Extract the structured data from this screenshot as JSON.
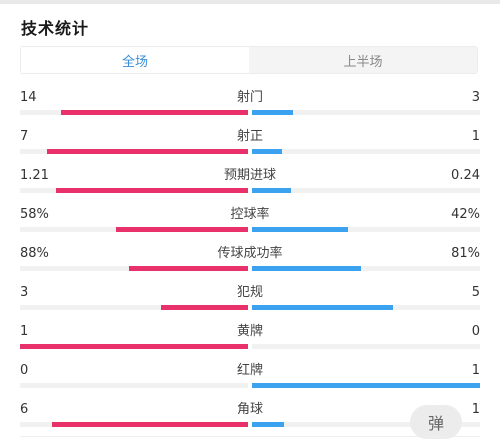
{
  "page": {
    "title": "技术统计"
  },
  "tabs": [
    {
      "label": "全场",
      "active": true
    },
    {
      "label": "上半场",
      "active": false
    }
  ],
  "colors": {
    "home": "#e8306b",
    "away": "#3ba2ef",
    "accent": "#3a8ed8"
  },
  "stats": [
    {
      "name": "射门",
      "home": "14",
      "away": "3",
      "home_fill": 0.82,
      "away_fill": 0.18
    },
    {
      "name": "射正",
      "home": "7",
      "away": "1",
      "home_fill": 0.88,
      "away_fill": 0.13
    },
    {
      "name": "预期进球",
      "home": "1.21",
      "away": "0.24",
      "home_fill": 0.84,
      "away_fill": 0.17
    },
    {
      "name": "控球率",
      "home": "58%",
      "away": "42%",
      "home_fill": 0.58,
      "away_fill": 0.42
    },
    {
      "name": "传球成功率",
      "home": "88%",
      "away": "81%",
      "home_fill": 0.52,
      "away_fill": 0.48
    },
    {
      "name": "犯规",
      "home": "3",
      "away": "5",
      "home_fill": 0.38,
      "away_fill": 0.62
    },
    {
      "name": "黄牌",
      "home": "1",
      "away": "0",
      "home_fill": 1.0,
      "away_fill": 0.0
    },
    {
      "name": "红牌",
      "home": "0",
      "away": "1",
      "home_fill": 0.0,
      "away_fill": 1.0
    },
    {
      "name": "角球",
      "home": "6",
      "away": "1",
      "home_fill": 0.86,
      "away_fill": 0.14
    }
  ],
  "float_button": {
    "label": "弹"
  }
}
